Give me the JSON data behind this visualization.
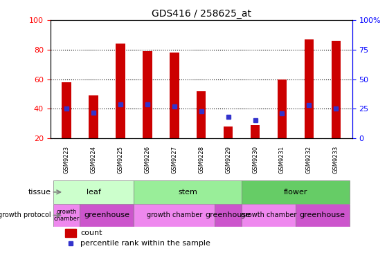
{
  "title": "GDS416 / 258625_at",
  "samples": [
    "GSM9223",
    "GSM9224",
    "GSM9225",
    "GSM9226",
    "GSM9227",
    "GSM9228",
    "GSM9229",
    "GSM9230",
    "GSM9231",
    "GSM9232",
    "GSM9233"
  ],
  "counts": [
    58,
    49,
    84,
    79,
    78,
    52,
    28,
    29,
    60,
    87,
    86
  ],
  "percentiles": [
    25,
    22,
    29,
    29,
    27,
    23,
    18,
    15,
    21,
    28,
    25
  ],
  "ymin": 20,
  "ymax": 100,
  "yticks_left": [
    20,
    40,
    60,
    80,
    100
  ],
  "right_yticks_pct": [
    0,
    25,
    50,
    75,
    100
  ],
  "right_ytick_labels": [
    "0",
    "25",
    "50",
    "75",
    "100%"
  ],
  "bar_color": "#cc0000",
  "dot_color": "#3333cc",
  "bg_color": "#ffffff",
  "plot_bg": "#ffffff",
  "xticklabel_bg": "#cccccc",
  "tissue_groups": [
    {
      "label": "leaf",
      "start": 0,
      "end": 3,
      "color": "#ccffcc"
    },
    {
      "label": "stem",
      "start": 3,
      "end": 7,
      "color": "#99ee99"
    },
    {
      "label": "flower",
      "start": 7,
      "end": 11,
      "color": "#66cc66"
    }
  ],
  "growth_groups": [
    {
      "label": "growth\nchamber",
      "start": 0,
      "end": 1,
      "color": "#ee88ee",
      "fontsize": 6
    },
    {
      "label": "greenhouse",
      "start": 1,
      "end": 3,
      "color": "#cc55cc",
      "fontsize": 8
    },
    {
      "label": "growth chamber",
      "start": 3,
      "end": 6,
      "color": "#ee88ee",
      "fontsize": 7
    },
    {
      "label": "greenhouse",
      "start": 6,
      "end": 7,
      "color": "#cc55cc",
      "fontsize": 8
    },
    {
      "label": "growth chamber",
      "start": 7,
      "end": 9,
      "color": "#ee88ee",
      "fontsize": 7
    },
    {
      "label": "greenhouse",
      "start": 9,
      "end": 11,
      "color": "#cc55cc",
      "fontsize": 8
    }
  ],
  "tissue_label": "tissue",
  "growth_label": "growth protocol",
  "legend_count_label": "count",
  "legend_pct_label": "percentile rank within the sample",
  "bar_width": 0.35,
  "grid_yticks": [
    40,
    60,
    80
  ]
}
